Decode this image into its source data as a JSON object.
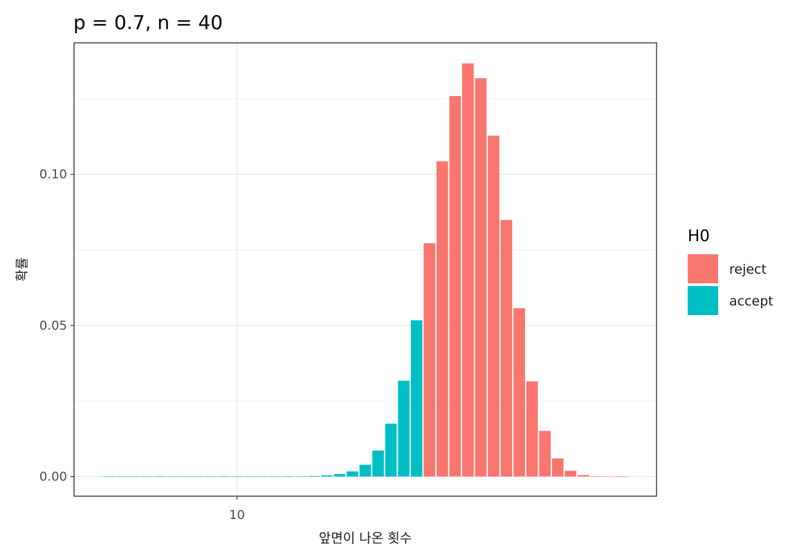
{
  "chart_data": {
    "type": "bar",
    "title": "p = 0.7, n = 40",
    "xlabel": "앞면이 나온 횟수",
    "ylabel": "확률",
    "xlim": [
      -2.7,
      42.7
    ],
    "ylim": [
      -0.0065,
      0.1435
    ],
    "x_ticks": [
      {
        "value": 10,
        "label": "10"
      }
    ],
    "y_ticks": [
      {
        "value": 0.0,
        "label": "0.00"
      },
      {
        "value": 0.05,
        "label": "0.05"
      },
      {
        "value": 0.1,
        "label": "0.10"
      }
    ],
    "grid": true,
    "legend": {
      "title": "H0",
      "position": "right",
      "entries": [
        {
          "key": "reject",
          "label": "reject",
          "color": "#F8766D"
        },
        {
          "key": "accept",
          "label": "accept",
          "color": "#00BFC4"
        }
      ]
    },
    "series": [
      {
        "x": 0,
        "value": 0.0,
        "group": "accept"
      },
      {
        "x": 1,
        "value": 0.0,
        "group": "accept"
      },
      {
        "x": 2,
        "value": 0.0,
        "group": "accept"
      },
      {
        "x": 3,
        "value": 0.0,
        "group": "accept"
      },
      {
        "x": 4,
        "value": 0.0,
        "group": "accept"
      },
      {
        "x": 5,
        "value": 0.0,
        "group": "accept"
      },
      {
        "x": 6,
        "value": 0.0,
        "group": "accept"
      },
      {
        "x": 7,
        "value": 0.0,
        "group": "accept"
      },
      {
        "x": 8,
        "value": 0.0,
        "group": "accept"
      },
      {
        "x": 9,
        "value": 0.0,
        "group": "accept"
      },
      {
        "x": 10,
        "value": 0.0,
        "group": "accept"
      },
      {
        "x": 11,
        "value": 0.0,
        "group": "accept"
      },
      {
        "x": 12,
        "value": 0.0,
        "group": "accept"
      },
      {
        "x": 13,
        "value": 0.0,
        "group": "accept"
      },
      {
        "x": 14,
        "value": 0.0,
        "group": "accept"
      },
      {
        "x": 15,
        "value": 0.0001,
        "group": "accept"
      },
      {
        "x": 16,
        "value": 0.0002,
        "group": "accept"
      },
      {
        "x": 17,
        "value": 0.0004,
        "group": "accept"
      },
      {
        "x": 18,
        "value": 0.0008,
        "group": "accept"
      },
      {
        "x": 19,
        "value": 0.0017,
        "group": "accept"
      },
      {
        "x": 20,
        "value": 0.0039,
        "group": "accept"
      },
      {
        "x": 21,
        "value": 0.0086,
        "group": "accept"
      },
      {
        "x": 22,
        "value": 0.0175,
        "group": "accept"
      },
      {
        "x": 23,
        "value": 0.0317,
        "group": "accept"
      },
      {
        "x": 24,
        "value": 0.0517,
        "group": "accept"
      },
      {
        "x": 25,
        "value": 0.0772,
        "group": "reject"
      },
      {
        "x": 26,
        "value": 0.1043,
        "group": "reject"
      },
      {
        "x": 27,
        "value": 0.1259,
        "group": "reject"
      },
      {
        "x": 28,
        "value": 0.1367,
        "group": "reject"
      },
      {
        "x": 29,
        "value": 0.1318,
        "group": "reject"
      },
      {
        "x": 30,
        "value": 0.1128,
        "group": "reject"
      },
      {
        "x": 31,
        "value": 0.0849,
        "group": "reject"
      },
      {
        "x": 32,
        "value": 0.0557,
        "group": "reject"
      },
      {
        "x": 33,
        "value": 0.0315,
        "group": "reject"
      },
      {
        "x": 34,
        "value": 0.0151,
        "group": "reject"
      },
      {
        "x": 35,
        "value": 0.006,
        "group": "reject"
      },
      {
        "x": 36,
        "value": 0.0019,
        "group": "reject"
      },
      {
        "x": 37,
        "value": 0.0005,
        "group": "reject"
      },
      {
        "x": 38,
        "value": 0.0001,
        "group": "reject"
      },
      {
        "x": 39,
        "value": 0.0,
        "group": "reject"
      },
      {
        "x": 40,
        "value": 0.0,
        "group": "reject"
      }
    ]
  }
}
